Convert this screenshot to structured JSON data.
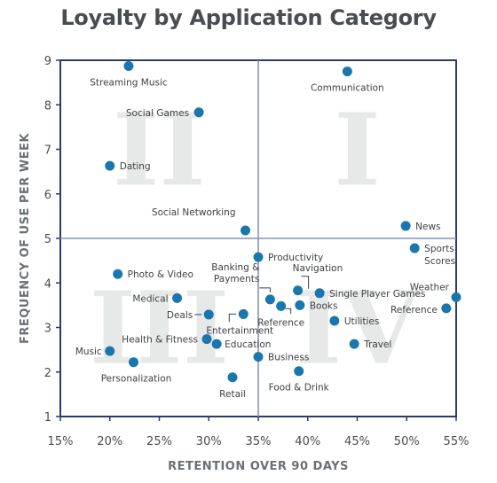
{
  "chart_data": {
    "type": "scatter",
    "title": "Loyalty by Application Category",
    "xlabel": "RETENTION OVER 90 DAYS",
    "ylabel": "FREQUENCY OF USE PER WEEK",
    "xlim": [
      15,
      55
    ],
    "ylim": [
      1,
      9
    ],
    "x_ticks": [
      "15%",
      "20%",
      "25%",
      "30%",
      "35%",
      "40%",
      "45%",
      "50%",
      "55%"
    ],
    "y_ticks": [
      "1",
      "2",
      "3",
      "4",
      "5",
      "6",
      "7",
      "8",
      "9"
    ],
    "x_divider": 35,
    "y_divider": 5,
    "grid": false,
    "quadrant_labels": [
      {
        "text": "II",
        "x": 25,
        "y": 7
      },
      {
        "text": "I",
        "x": 45,
        "y": 7
      },
      {
        "text": "III",
        "x": 25,
        "y": 3
      },
      {
        "text": "IV",
        "x": 45,
        "y": 3
      }
    ],
    "point_color": "#1a77ae",
    "axis_color": "#2b3a6e",
    "points": [
      {
        "label": "Streaming Music",
        "x": 21.9,
        "y": 8.87,
        "anchor": "middle",
        "dx": 0,
        "dy": 22
      },
      {
        "label": "Communication",
        "x": 44.0,
        "y": 8.75,
        "anchor": "middle",
        "dx": 0,
        "dy": 22
      },
      {
        "label": "Social Games",
        "x": 29.0,
        "y": 7.83,
        "anchor": "end",
        "dx": -11,
        "dy": 4
      },
      {
        "label": "Dating",
        "x": 20.0,
        "y": 6.63,
        "anchor": "start",
        "dx": 11,
        "dy": 4
      },
      {
        "label": "Social Networking",
        "x": 33.7,
        "y": 5.18,
        "anchor": "end",
        "dx": -11,
        "dy": -17
      },
      {
        "label": "News",
        "x": 49.9,
        "y": 5.28,
        "anchor": "start",
        "dx": 11,
        "dy": 4
      },
      {
        "label": "Sports",
        "x": 50.8,
        "y": 4.78,
        "anchor": "start",
        "dx": 11,
        "dy": 4
      },
      {
        "label": "Scores",
        "x": 50.8,
        "y": 4.78,
        "anchor": "start",
        "dx": 11,
        "dy": 18
      },
      {
        "label": "Productivity",
        "x": 35.0,
        "y": 4.58,
        "anchor": "start",
        "dx": 11,
        "dy": 4
      },
      {
        "label": "Photo & Video",
        "x": 20.8,
        "y": 4.2,
        "anchor": "start",
        "dx": 11,
        "dy": 4
      },
      {
        "label": "Navigation",
        "x": 39.0,
        "y": 3.83,
        "anchor": "start",
        "dx": -6,
        "dy": -22
      },
      {
        "label": "Banking &",
        "x": 36.2,
        "y": 3.63,
        "anchor": "end",
        "dx": -12,
        "dy": -33
      },
      {
        "label": "Payments",
        "x": 36.2,
        "y": 3.63,
        "anchor": "end",
        "dx": -12,
        "dy": -20
      },
      {
        "label": "Single Player Games",
        "x": 41.2,
        "y": 3.77,
        "anchor": "start",
        "dx": 11,
        "dy": 4
      },
      {
        "label": "Weather",
        "x": 55.0,
        "y": 3.68,
        "anchor": "end",
        "dx": -8,
        "dy": -8
      },
      {
        "label": "Medical",
        "x": 26.8,
        "y": 3.66,
        "anchor": "end",
        "dx": -10,
        "dy": 4
      },
      {
        "label": "Reference",
        "x": 37.3,
        "y": 3.48,
        "anchor": "middle",
        "dx": 0,
        "dy": 22
      },
      {
        "label": "Books",
        "x": 39.2,
        "y": 3.5,
        "anchor": "start",
        "dx": 11,
        "dy": 4
      },
      {
        "label": "Reference",
        "x": 54.0,
        "y": 3.43,
        "anchor": "end",
        "dx": -10,
        "dy": 5
      },
      {
        "label": "Deals",
        "x": 30.0,
        "y": 3.29,
        "anchor": "end",
        "dx": -18,
        "dy": 4
      },
      {
        "label": "Entertainment",
        "x": 33.5,
        "y": 3.3,
        "anchor": "middle",
        "dx": -4,
        "dy": 22
      },
      {
        "label": "Utilities",
        "x": 42.7,
        "y": 3.15,
        "anchor": "start",
        "dx": 11,
        "dy": 4
      },
      {
        "label": "Health & Fitness",
        "x": 29.8,
        "y": 2.74,
        "anchor": "end",
        "dx": -10,
        "dy": 4
      },
      {
        "label": "Education",
        "x": 30.8,
        "y": 2.63,
        "anchor": "start",
        "dx": 9,
        "dy": 4
      },
      {
        "label": "Travel",
        "x": 44.7,
        "y": 2.63,
        "anchor": "start",
        "dx": 11,
        "dy": 4
      },
      {
        "label": "Music",
        "x": 20.0,
        "y": 2.47,
        "anchor": "end",
        "dx": -9,
        "dy": 4
      },
      {
        "label": "Business",
        "x": 35.0,
        "y": 2.34,
        "anchor": "start",
        "dx": 11,
        "dy": 4
      },
      {
        "label": "Personalization",
        "x": 22.4,
        "y": 2.22,
        "anchor": "middle",
        "dx": 3,
        "dy": 22
      },
      {
        "label": "Food & Drink",
        "x": 39.1,
        "y": 2.02,
        "anchor": "middle",
        "dx": 0,
        "dy": 22
      },
      {
        "label": "Retail",
        "x": 32.4,
        "y": 1.88,
        "anchor": "middle",
        "dx": 0,
        "dy": 22
      }
    ]
  }
}
